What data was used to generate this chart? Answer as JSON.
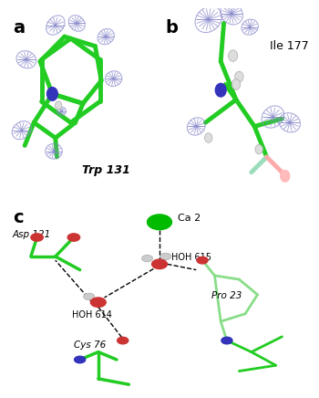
{
  "fig_width": 3.5,
  "fig_height": 4.36,
  "dpi": 100,
  "bg_color": "#ffffff",
  "panel_labels": [
    "a",
    "b",
    "c"
  ],
  "panel_label_fontsize": 14,
  "panel_label_weight": "bold",
  "green_color": "#22cc22",
  "dark_green": "#119911",
  "blue_color": "#4444aa",
  "light_blue": "#8888cc",
  "mesh_color": "#8888cc",
  "red_color": "#ff6666",
  "pink_color": "#ffaaaa",
  "white_color": "#ffffff",
  "gray_color": "#aaaaaa",
  "dark_gray": "#555555",
  "nitrogen_blue": "#3333bb",
  "oxygen_red": "#cc3333",
  "ca_green": "#00bb00",
  "text_color": "#000000",
  "annotation_fontsize": 8,
  "label_fontsize": 9
}
